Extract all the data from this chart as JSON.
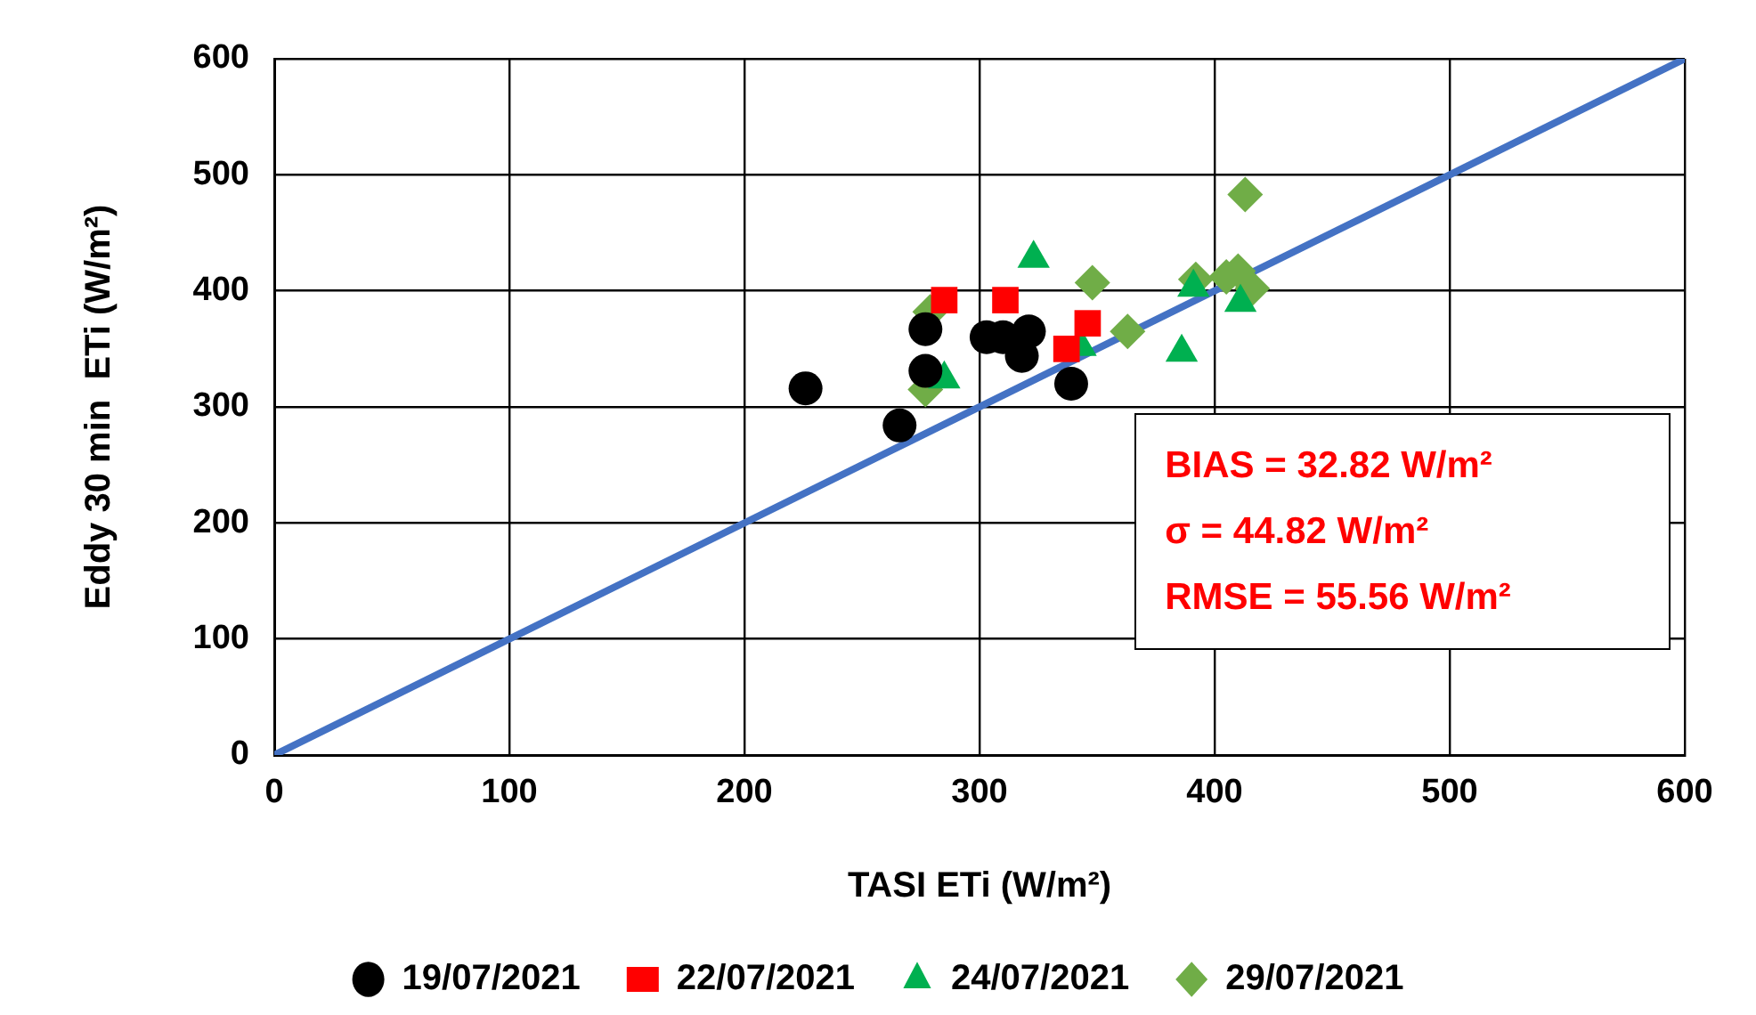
{
  "chart_data": {
    "type": "scatter",
    "xlabel": "TASI ETi (W/m²)",
    "ylabel": "Eddy 30 min  ETi (W/m²)",
    "xlim": [
      0,
      600
    ],
    "ylim": [
      0,
      600
    ],
    "xticks": [
      0,
      100,
      200,
      300,
      400,
      500,
      600
    ],
    "yticks": [
      0,
      100,
      200,
      300,
      400,
      500,
      600
    ],
    "grid": true,
    "legend": "bottom",
    "annotations": [
      "BIAS = 32.82 W/m²",
      "σ = 44.82 W/m²",
      "RMSE = 55.56 W/m²"
    ],
    "series": [
      {
        "name": "19/07/2021",
        "color": "#000000",
        "marker": "circle",
        "x": [
          226,
          266,
          277,
          277,
          303,
          310,
          318,
          321,
          339
        ],
        "values": [
          316,
          284,
          331,
          367,
          360,
          360,
          344,
          365,
          320
        ]
      },
      {
        "name": "22/07/2021",
        "color": "#ff0000",
        "marker": "square",
        "x": [
          285,
          311,
          346,
          337
        ],
        "values": [
          392,
          392,
          372,
          350
        ]
      },
      {
        "name": "24/07/2021",
        "color": "#00b050",
        "marker": "triangle",
        "x": [
          323,
          285,
          343,
          386,
          391,
          411
        ],
        "values": [
          428,
          324,
          352,
          347,
          403,
          390
        ]
      },
      {
        "name": "29/07/2021",
        "color": "#70ad47",
        "marker": "diamond",
        "x": [
          279,
          277,
          348,
          363,
          392,
          405,
          410,
          416,
          413
        ],
        "values": [
          382,
          315,
          407,
          365,
          410,
          412,
          417,
          402,
          483
        ]
      },
      {
        "type": "line",
        "color": "#4472c4",
        "marker": "none",
        "x": [
          0,
          600
        ],
        "values": [
          0,
          600
        ]
      }
    ]
  }
}
